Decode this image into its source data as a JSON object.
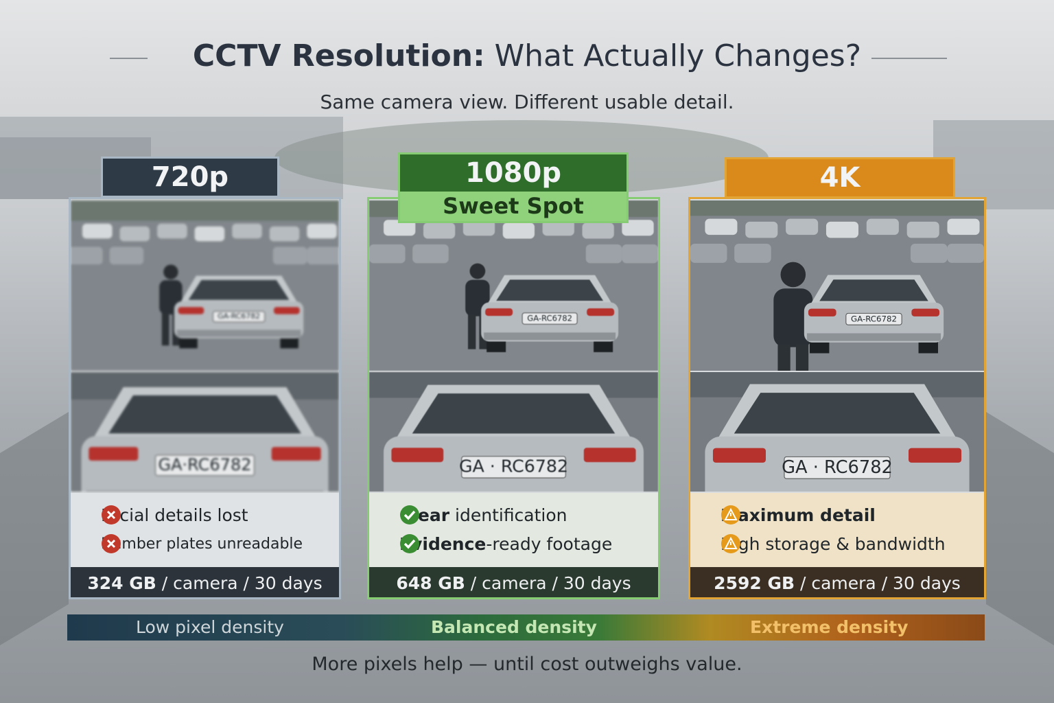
{
  "header": {
    "title": {
      "bold": "CCTV Resolution:",
      "text": " What Actually Changes?"
    },
    "subtitle": "Same camera view. Different usable detail."
  },
  "panels": [
    {
      "label": "720p",
      "color": "#2f3a47",
      "plate": "GA-RC6782",
      "plate_zoom": "GA·RC6782",
      "features": [
        {
          "text": "Facial details lost"
        },
        {
          "text": "Number plates unreadable"
        }
      ],
      "storage": {
        "bold": "324 GB",
        "text": " / camera / 30 days"
      }
    },
    {
      "label": "1080p",
      "badge": "Sweet Spot",
      "color": "#2f6e2a",
      "plate": "GA-RC6782",
      "plate_zoom": "GA · RC6782",
      "features": [
        {
          "bold": "Clear",
          "text": " identification"
        },
        {
          "bold": "Evidence",
          "text": "-ready footage"
        }
      ],
      "storage": {
        "bold": "648 GB",
        "text": " / camera / 30 days"
      }
    },
    {
      "label": "4K",
      "color": "#d98a1a",
      "plate": "GA-RC6782",
      "plate_zoom": "GA · RC6782",
      "features": [
        {
          "bold": "Maximum detail"
        },
        {
          "text": "High storage & bandwidth"
        }
      ],
      "storage": {
        "bold": "2592 GB",
        "text": " / camera / 30 days"
      }
    }
  ],
  "density_bar": [
    "Low pixel density",
    "Balanced density",
    "Extreme density"
  ],
  "footer": "More pixels help — until cost outweighs value."
}
